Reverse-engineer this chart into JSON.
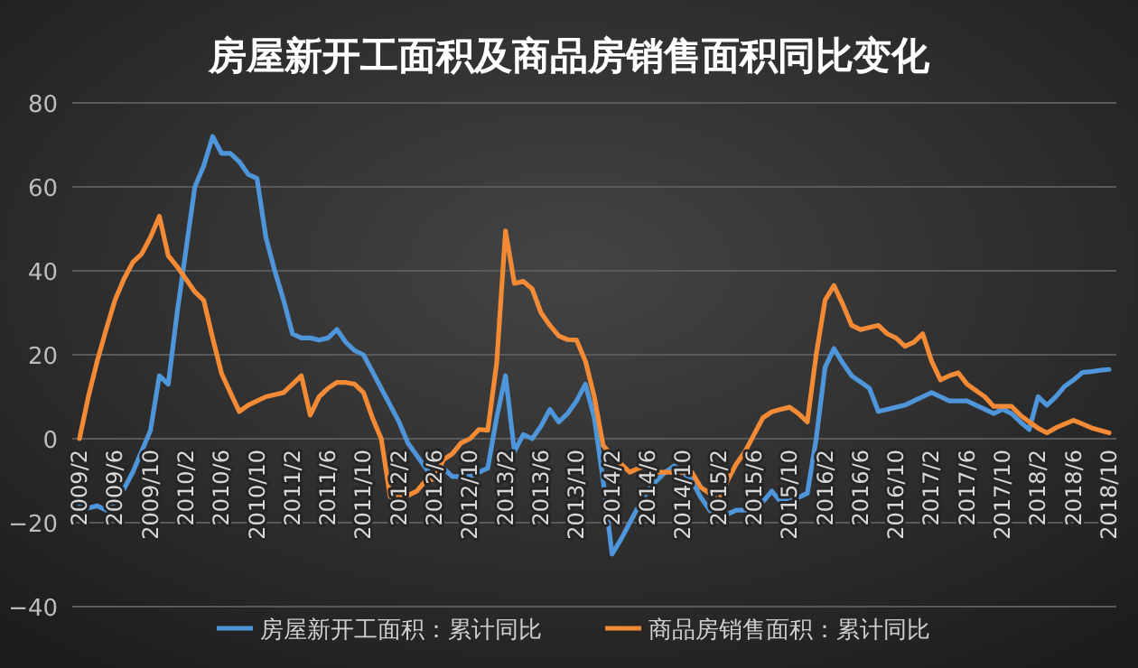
{
  "chart_data": {
    "type": "line",
    "title": "房屋新开工面积及商品房销售面积同比变化",
    "categories": [
      "2009/2",
      null,
      null,
      null,
      "2009/6",
      null,
      null,
      null,
      "2009/10",
      null,
      null,
      null,
      "2010/2",
      null,
      null,
      null,
      "2010/6",
      null,
      null,
      null,
      "2010/10",
      null,
      null,
      null,
      "2011/2",
      null,
      null,
      null,
      "2011/6",
      null,
      null,
      null,
      "2011/10",
      null,
      null,
      null,
      "2012/2",
      null,
      null,
      null,
      "2012/6",
      null,
      null,
      null,
      "2012/10",
      null,
      null,
      null,
      "2013/2",
      null,
      null,
      null,
      "2013/6",
      null,
      null,
      null,
      "2013/10",
      null,
      null,
      null,
      "2014/2",
      null,
      null,
      null,
      "2014/6",
      null,
      null,
      null,
      "2014/10",
      null,
      null,
      null,
      "2015/2",
      null,
      null,
      null,
      "2015/6",
      null,
      null,
      null,
      "2015/10",
      null,
      null,
      null,
      "2016/2",
      null,
      null,
      null,
      "2016/6",
      null,
      null,
      null,
      "2016/10",
      null,
      null,
      null,
      "2017/2",
      null,
      null,
      null,
      "2017/6",
      null,
      null,
      null,
      "2017/10",
      null,
      null,
      null,
      "2018/2",
      null,
      null,
      null,
      "2018/6",
      null,
      null,
      null,
      "2018/10"
    ],
    "series": [
      {
        "name": "房屋新开工面积：累计同比",
        "color": "#4e95d9",
        "values": [
          -16,
          -16.5,
          -16,
          -17,
          -15,
          -12,
          -8,
          -3,
          2,
          15,
          13,
          30,
          45,
          60,
          65,
          72,
          68,
          68,
          66,
          63,
          62,
          48,
          40,
          33,
          25,
          24,
          24,
          23.5,
          24,
          26,
          23,
          21,
          20,
          16,
          12,
          8,
          4,
          -1,
          -4,
          -7,
          -9.5,
          -7,
          -9,
          -9,
          -9,
          -8,
          -7,
          5,
          15,
          -3,
          1,
          0,
          3,
          7,
          4,
          6,
          9,
          13,
          5,
          -10,
          -27.5,
          -24,
          -20,
          -16,
          -12.5,
          -10,
          -8,
          -6.5,
          -8,
          -10,
          -14,
          -17,
          -19,
          -18,
          -17,
          -17,
          -17,
          -15,
          -12.5,
          -15,
          -14,
          -14,
          -13,
          0,
          17,
          21.5,
          18,
          15,
          13.5,
          12,
          6.5,
          7,
          7.5,
          8,
          9,
          10,
          11,
          10,
          9,
          9,
          9,
          8,
          7,
          6,
          7,
          6,
          4,
          2.2,
          10,
          8,
          10,
          12.5,
          14,
          15.8,
          16,
          16.3,
          16.5
        ]
      },
      {
        "name": "商品房销售面积：累计同比",
        "color": "#f28a36",
        "values": [
          0,
          10,
          18.5,
          26,
          33,
          38,
          42,
          44,
          48,
          53,
          43.6,
          41,
          38,
          35,
          33,
          24,
          15.6,
          11,
          6.5,
          8,
          9,
          10,
          10.5,
          11,
          13,
          15,
          5.6,
          10,
          12,
          13.4,
          13.4,
          13,
          11,
          5,
          0,
          -13.8,
          -13.8,
          -13.5,
          -12.5,
          -10,
          -9.6,
          -5,
          -3.6,
          -1,
          0,
          2.2,
          2,
          18,
          49.5,
          37,
          37.5,
          35.7,
          30,
          27,
          24.5,
          23.6,
          23.5,
          18.5,
          10,
          -1.6,
          -4,
          -6,
          -8,
          -7,
          -6.5,
          -8,
          -8,
          -8,
          -8,
          -8,
          -11.6,
          -13,
          -15,
          -10,
          -6,
          -3,
          1,
          5,
          6.4,
          7,
          7.5,
          6,
          4,
          20,
          33,
          36.5,
          32,
          27,
          26,
          26.5,
          27,
          25,
          24,
          22,
          23,
          25,
          18.5,
          14,
          15,
          15.7,
          13,
          11.5,
          10,
          7.7,
          7.7,
          7.7,
          5.6,
          4,
          2.5,
          1.4,
          2.6,
          3.5,
          4.4,
          3.5,
          2.6,
          2,
          1.4
        ]
      }
    ],
    "ylim": [
      -40,
      80
    ],
    "yticks": [
      -40,
      -20,
      0,
      20,
      40,
      60,
      80
    ],
    "grid": "y",
    "legend": "bottom"
  }
}
